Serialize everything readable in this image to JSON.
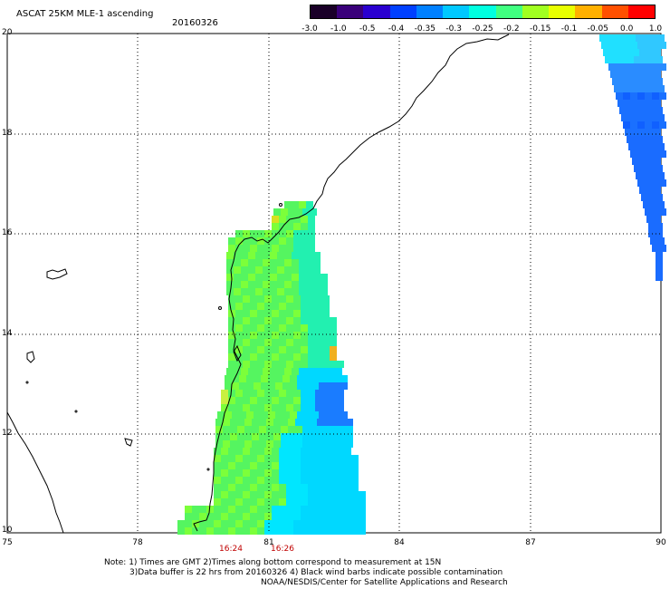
{
  "header": {
    "title": "ASCAT 25KM MLE-1 ascending",
    "date": "20160326"
  },
  "colorbar": {
    "labels": [
      "-3.0",
      "-1.0",
      "-0.5",
      "-0.4",
      "-0.35",
      "-0.3",
      "-0.25",
      "-0.2",
      "-0.15",
      "-0.1",
      "-0.05",
      "0.0",
      "1.0"
    ],
    "colors": [
      "#1a0028",
      "#3a007a",
      "#2a00d0",
      "#0040ff",
      "#0080ff",
      "#00c8ff",
      "#00ffe0",
      "#40ff80",
      "#a0ff20",
      "#e8ff00",
      "#ffb000",
      "#ff5000",
      "#ff0000"
    ]
  },
  "map": {
    "lat_labels": [
      "20",
      "18",
      "16",
      "14",
      "12",
      "10"
    ],
    "lon_labels": [
      "75",
      "78",
      "81",
      "84",
      "87",
      "90"
    ],
    "time_labels": [
      "16:24",
      "16:26"
    ]
  },
  "notes": {
    "line1": "Note: 1) Times are GMT 2)Times along bottom correspond to measurement at 15N",
    "line2": "3)Data buffer is 22 hrs from 20160326 4) Black wind barbs indicate possible contamination",
    "line3": "NOAA/NESDIS/Center for Satellite Applications and Research"
  }
}
